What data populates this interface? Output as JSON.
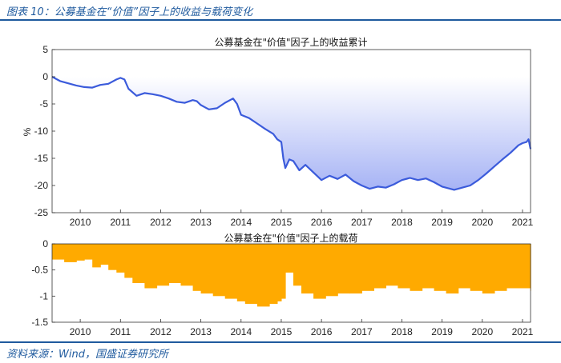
{
  "figure": {
    "title": "图表 10：公募基金在“价值”因子上的收益与载荷变化",
    "source": "资料来源：Wind，国盛证券研究所",
    "colors": {
      "header": "#1f5a9e",
      "line": "#3b5bdb",
      "area_top": "#ffffff",
      "area_bottom": "#a6b3f5",
      "bar": "#ffaa00"
    }
  },
  "chart_data": [
    {
      "type": "area",
      "title": "公募基金在\"价值\"因子上的收益累计",
      "ylabel": "%",
      "xlabel": "",
      "xlim": [
        2009.3,
        2021.2
      ],
      "ylim": [
        -25,
        5
      ],
      "xticks": [
        2010,
        2011,
        2012,
        2013,
        2014,
        2015,
        2016,
        2017,
        2018,
        2019,
        2020,
        2021
      ],
      "yticks": [
        5,
        0,
        -5,
        -10,
        -15,
        -20,
        -25
      ],
      "baseline": 0,
      "x": [
        2009.3,
        2009.5,
        2009.7,
        2009.9,
        2010.1,
        2010.3,
        2010.5,
        2010.7,
        2010.9,
        2011.0,
        2011.1,
        2011.2,
        2011.4,
        2011.6,
        2011.8,
        2012.0,
        2012.2,
        2012.4,
        2012.6,
        2012.8,
        2012.9,
        2013.0,
        2013.2,
        2013.4,
        2013.6,
        2013.8,
        2013.9,
        2014.0,
        2014.2,
        2014.4,
        2014.6,
        2014.8,
        2014.9,
        2015.0,
        2015.05,
        2015.1,
        2015.2,
        2015.3,
        2015.45,
        2015.6,
        2015.8,
        2016.0,
        2016.2,
        2016.4,
        2016.6,
        2016.8,
        2017.0,
        2017.2,
        2017.4,
        2017.6,
        2017.8,
        2018.0,
        2018.2,
        2018.4,
        2018.6,
        2018.8,
        2019.0,
        2019.15,
        2019.3,
        2019.5,
        2019.7,
        2019.9,
        2020.1,
        2020.3,
        2020.5,
        2020.7,
        2020.9,
        2021.0,
        2021.1,
        2021.15,
        2021.2
      ],
      "y": [
        0,
        -0.8,
        -1.2,
        -1.6,
        -1.9,
        -2.0,
        -1.5,
        -1.3,
        -0.5,
        -0.2,
        -0.5,
        -2.2,
        -3.5,
        -3.0,
        -3.2,
        -3.5,
        -4.0,
        -4.6,
        -4.8,
        -4.3,
        -4.5,
        -5.2,
        -6.0,
        -5.8,
        -4.8,
        -4.0,
        -5.0,
        -7.0,
        -7.6,
        -8.6,
        -9.6,
        -10.5,
        -11.5,
        -12.0,
        -15.0,
        -16.8,
        -15.2,
        -15.5,
        -17.2,
        -16.2,
        -17.6,
        -19.0,
        -18.2,
        -18.8,
        -18.0,
        -19.2,
        -20.0,
        -20.6,
        -20.2,
        -20.4,
        -19.8,
        -19.0,
        -18.6,
        -19.0,
        -18.7,
        -19.4,
        -20.2,
        -20.5,
        -20.8,
        -20.4,
        -20.0,
        -19.0,
        -17.8,
        -16.5,
        -15.2,
        -14.0,
        -12.6,
        -12.2,
        -12.0,
        -11.5,
        -13.3
      ]
    },
    {
      "type": "bar",
      "title": "公募基金在\"价值\"因子上的载荷",
      "ylabel": "",
      "xlabel": "",
      "xlim": [
        2009.3,
        2021.2
      ],
      "ylim": [
        -1.5,
        0
      ],
      "xticks": [
        2010,
        2011,
        2012,
        2013,
        2014,
        2015,
        2016,
        2017,
        2018,
        2019,
        2020,
        2021
      ],
      "yticks": [
        0,
        -0.5,
        -1,
        -1.5
      ],
      "x": [
        2009.3,
        2009.6,
        2009.9,
        2010.1,
        2010.3,
        2010.5,
        2010.7,
        2010.9,
        2011.1,
        2011.3,
        2011.6,
        2011.9,
        2012.2,
        2012.5,
        2012.8,
        2013.0,
        2013.3,
        2013.6,
        2013.9,
        2014.1,
        2014.4,
        2014.7,
        2014.9,
        2015.0,
        2015.1,
        2015.3,
        2015.5,
        2015.8,
        2016.1,
        2016.4,
        2016.7,
        2017.0,
        2017.3,
        2017.6,
        2017.9,
        2018.2,
        2018.5,
        2018.8,
        2019.1,
        2019.4,
        2019.7,
        2020.0,
        2020.3,
        2020.6,
        2020.9,
        2021.2
      ],
      "y": [
        -0.3,
        -0.35,
        -0.32,
        -0.3,
        -0.45,
        -0.4,
        -0.5,
        -0.55,
        -0.65,
        -0.75,
        -0.85,
        -0.8,
        -0.75,
        -0.8,
        -0.9,
        -0.95,
        -1.0,
        -1.05,
        -1.1,
        -1.15,
        -1.2,
        -1.15,
        -1.1,
        -1.05,
        -0.55,
        -0.8,
        -0.95,
        -1.05,
        -1.0,
        -0.95,
        -0.95,
        -0.9,
        -0.85,
        -0.8,
        -0.85,
        -0.9,
        -0.85,
        -0.9,
        -0.95,
        -0.85,
        -0.9,
        -0.95,
        -0.9,
        -0.85,
        -0.85,
        -0.9
      ]
    }
  ]
}
